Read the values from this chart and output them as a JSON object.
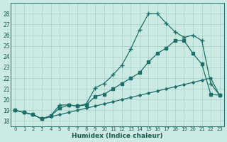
{
  "background_color": "#cceae4",
  "grid_color": "#a8cec8",
  "line_color": "#1a7068",
  "xlabel": "Humidex (Indice chaleur)",
  "xlim": [
    -0.5,
    23.5
  ],
  "ylim": [
    17.5,
    29.0
  ],
  "xticks": [
    0,
    1,
    2,
    3,
    4,
    5,
    6,
    7,
    8,
    9,
    10,
    11,
    12,
    13,
    14,
    15,
    16,
    17,
    18,
    19,
    20,
    21,
    22,
    23
  ],
  "yticks": [
    18,
    19,
    20,
    21,
    22,
    23,
    24,
    25,
    26,
    27,
    28
  ],
  "s1_x": [
    0,
    1,
    2,
    3,
    4,
    5,
    6,
    7,
    8,
    9,
    10,
    11,
    12,
    13,
    14,
    15,
    16,
    17,
    18,
    19,
    20,
    21,
    22,
    23
  ],
  "s1_y": [
    19.0,
    18.8,
    18.6,
    18.2,
    18.5,
    19.5,
    19.5,
    19.4,
    19.6,
    21.1,
    21.5,
    22.3,
    23.2,
    24.7,
    26.5,
    28.0,
    28.0,
    27.1,
    26.3,
    25.8,
    26.0,
    25.5,
    21.5,
    20.4
  ],
  "s2_x": [
    0,
    1,
    2,
    3,
    4,
    5,
    6,
    7,
    8,
    9,
    10,
    11,
    12,
    13,
    14,
    15,
    16,
    17,
    18,
    19,
    20,
    21,
    22,
    23
  ],
  "s2_y": [
    19.0,
    18.8,
    18.6,
    18.2,
    18.5,
    19.2,
    19.5,
    19.4,
    19.5,
    20.3,
    20.5,
    21.0,
    21.5,
    22.0,
    22.5,
    23.5,
    24.3,
    24.8,
    25.5,
    25.5,
    24.3,
    23.3,
    20.5,
    20.4
  ],
  "s3_x": [
    0,
    2,
    3,
    4,
    5,
    6,
    7,
    8,
    9,
    10,
    11,
    12,
    13,
    14,
    15,
    16,
    17,
    18,
    19,
    20,
    21,
    22,
    23
  ],
  "s3_y": [
    19.0,
    18.6,
    18.2,
    18.4,
    18.6,
    18.8,
    19.0,
    19.2,
    19.4,
    19.6,
    19.8,
    20.0,
    20.2,
    20.4,
    20.6,
    20.8,
    21.0,
    21.2,
    21.4,
    21.6,
    21.8,
    22.0,
    20.4
  ]
}
